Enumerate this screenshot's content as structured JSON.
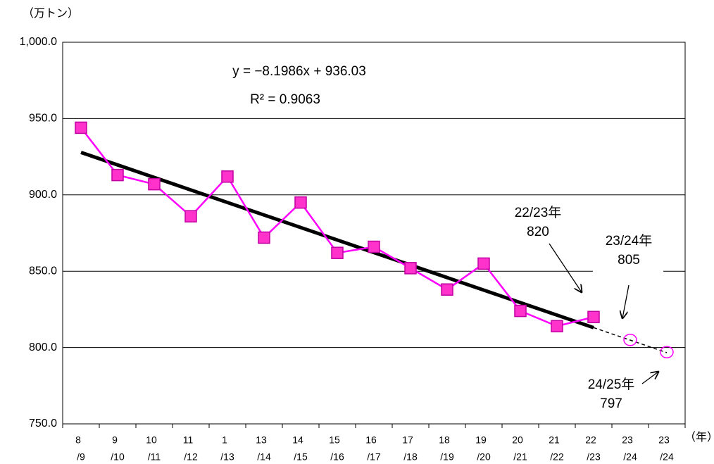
{
  "chart_data": {
    "type": "line",
    "y_unit": "（万トン）",
    "x_unit": "（年）",
    "categories": [
      [
        "8",
        "/9"
      ],
      [
        "9",
        "/10"
      ],
      [
        "10",
        "/11"
      ],
      [
        "11",
        "/12"
      ],
      [
        "1",
        "/13"
      ],
      [
        "13",
        "/14"
      ],
      [
        "14",
        "/15"
      ],
      [
        "15",
        "/16"
      ],
      [
        "16",
        "/17"
      ],
      [
        "17",
        "/18"
      ],
      [
        "18",
        "/19"
      ],
      [
        "19",
        "/20"
      ],
      [
        "20",
        "/21"
      ],
      [
        "21",
        "/22"
      ],
      [
        "22",
        "/23"
      ],
      [
        "23",
        "/24"
      ],
      [
        "23",
        "/24"
      ]
    ],
    "values": [
      944,
      913,
      907,
      886,
      912,
      872,
      895,
      862,
      866,
      852,
      838,
      855,
      824,
      814,
      820,
      null,
      null
    ],
    "forecast": [
      null,
      null,
      null,
      null,
      null,
      null,
      null,
      null,
      null,
      null,
      null,
      null,
      null,
      null,
      null,
      805,
      797
    ],
    "color": "#ff00ff",
    "trend": {
      "slope": -8.1986,
      "intercept": 936.03,
      "label": "y = −8.1986x + 936.03",
      "r2_label": "R² = 0.9063"
    },
    "annotations": [
      [
        "22/23年",
        "820"
      ],
      [
        "23/24年",
        "805"
      ],
      [
        "24/25年",
        "797"
      ]
    ],
    "ylim": [
      750,
      1000
    ],
    "yticks": [
      {
        "value": 750,
        "label": "750.0"
      },
      {
        "value": 800,
        "label": "800.0"
      },
      {
        "value": 850,
        "label": "850.0"
      },
      {
        "value": 900,
        "label": "900.0"
      },
      {
        "value": 950,
        "label": "950.0"
      },
      {
        "value": 1000,
        "label": "1,000.0"
      }
    ],
    "grid": true
  }
}
